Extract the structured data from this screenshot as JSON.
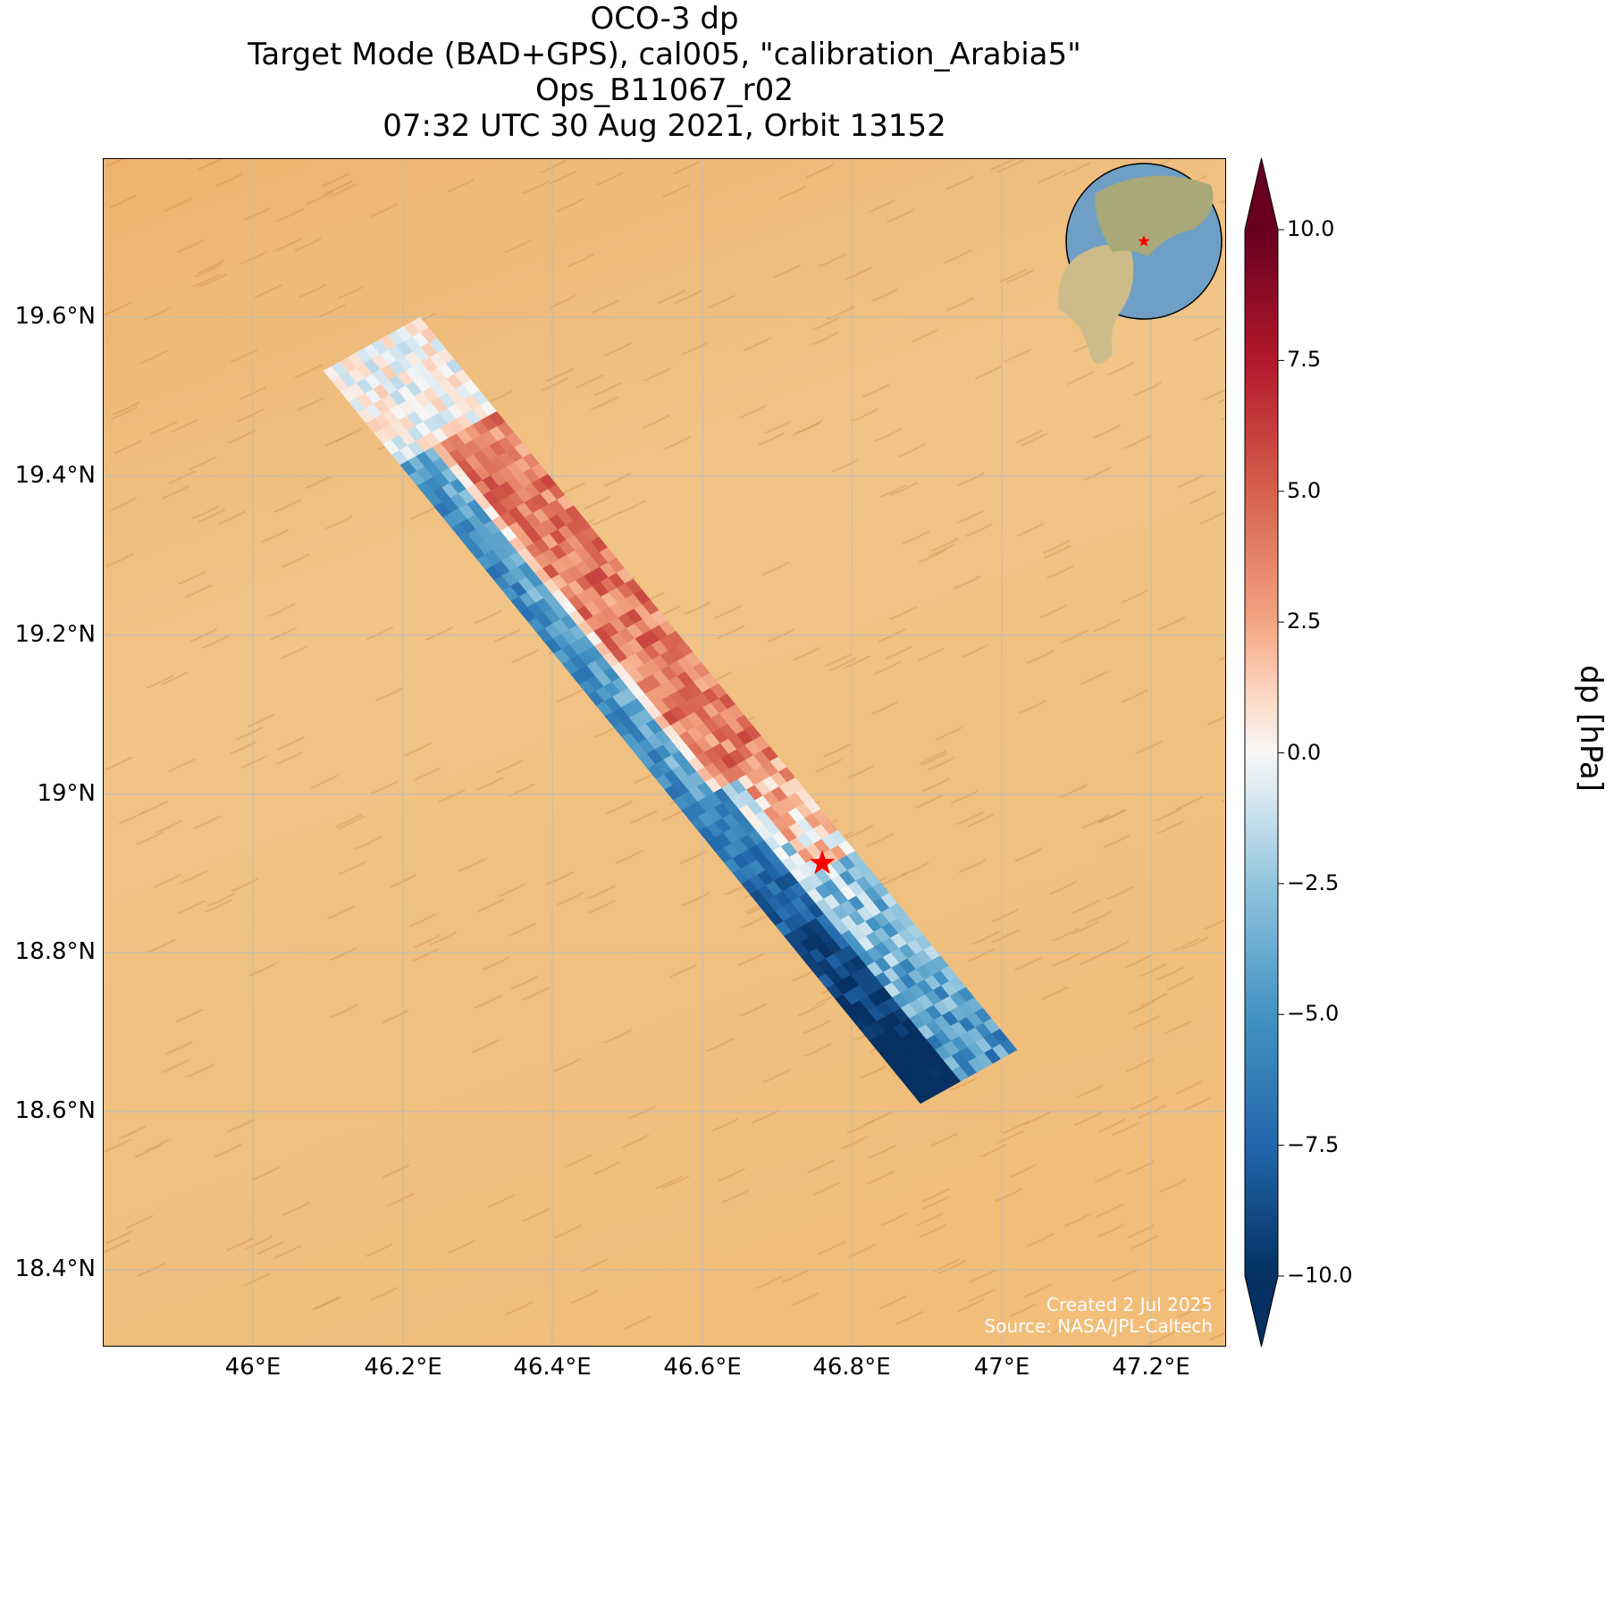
{
  "title": {
    "line1": "OCO-3 dp",
    "line2": "Target Mode (BAD+GPS), cal005, \"calibration_Arabia5\"",
    "line3": "Ops_B11067_r02",
    "line4": "07:32 UTC 30 Aug 2021, Orbit 13152"
  },
  "axes": {
    "lon_ticks": [
      "46°E",
      "46.2°E",
      "46.4°E",
      "46.6°E",
      "46.8°E",
      "47°E",
      "47.2°E"
    ],
    "lat_ticks": [
      "19.6°N",
      "19.4°N",
      "19.2°N",
      "19°N",
      "18.8°N",
      "18.6°N",
      "18.4°N"
    ]
  },
  "colorbar": {
    "label": "dp [hPa]",
    "ticks": [
      "10.0",
      "7.5",
      "5.0",
      "2.5",
      "0.0",
      "−2.5",
      "−5.0",
      "−7.5",
      "−10.0"
    ],
    "range": [
      -10,
      10
    ],
    "colormap": "RdBu_r"
  },
  "target_marker": {
    "color": "#ff0000"
  },
  "credit": {
    "created": "Created 2 Jul 2025",
    "source": "Source: NASA/JPL-Caltech"
  }
}
